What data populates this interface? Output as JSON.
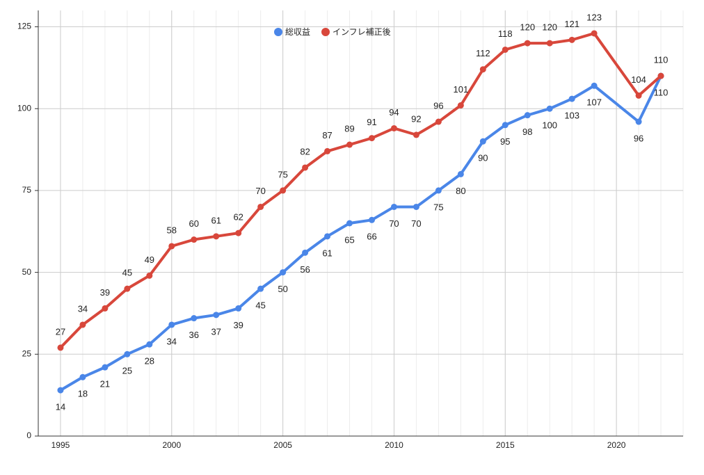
{
  "chart_data": {
    "type": "line",
    "x": [
      1995,
      1996,
      1997,
      1998,
      1999,
      2000,
      2001,
      2002,
      2003,
      2004,
      2005,
      2006,
      2007,
      2008,
      2009,
      2010,
      2011,
      2012,
      2013,
      2014,
      2015,
      2016,
      2017,
      2018,
      2019,
      2021,
      2022
    ],
    "series": [
      {
        "name": "総収益",
        "color": "#4a86e8",
        "values": [
          14,
          18,
          21,
          25,
          28,
          34,
          36,
          37,
          39,
          45,
          50,
          56,
          61,
          65,
          66,
          70,
          70,
          75,
          80,
          90,
          95,
          98,
          100,
          103,
          107,
          96,
          110
        ]
      },
      {
        "name": "インフレ補正後",
        "color": "#d8473b",
        "values": [
          27,
          34,
          39,
          45,
          49,
          58,
          60,
          61,
          62,
          70,
          75,
          82,
          87,
          89,
          91,
          94,
          92,
          96,
          101,
          112,
          118,
          120,
          120,
          121,
          123,
          104,
          110
        ]
      }
    ],
    "xlim": [
      1994,
      2023
    ],
    "xticks": [
      1995,
      2000,
      2005,
      2010,
      2015,
      2020
    ],
    "ylim": [
      0,
      130
    ],
    "yticks": [
      0,
      25,
      50,
      75,
      100,
      125
    ],
    "grid": true,
    "legend": "top"
  }
}
